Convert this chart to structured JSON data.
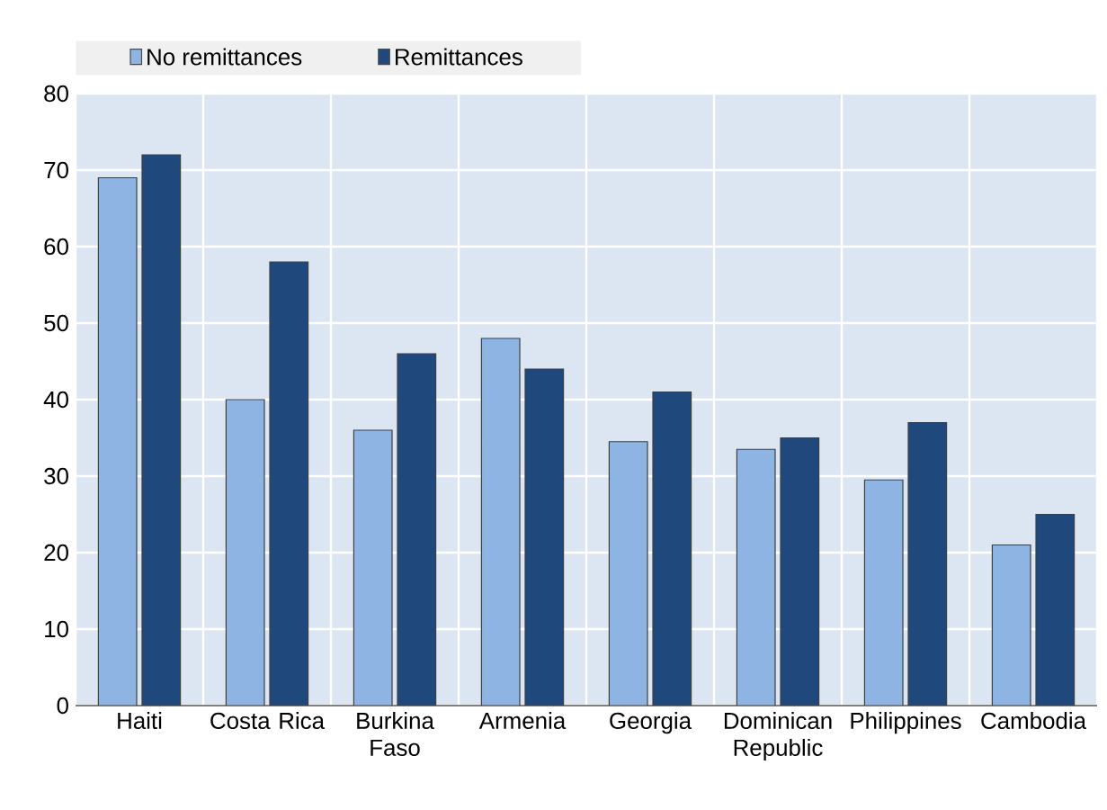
{
  "chart_data": {
    "type": "bar",
    "categories": [
      "Haiti",
      "Costa Rica",
      "Burkina Faso",
      "Armenia",
      "Georgia",
      "Dominican Republic",
      "Philippines",
      "Cambodia"
    ],
    "series": [
      {
        "name": "No remittances",
        "color": "#8db4e2",
        "values": [
          69,
          40,
          36,
          48,
          34.5,
          33.5,
          29.5,
          21
        ]
      },
      {
        "name": "Remittances",
        "color": "#1f497d",
        "values": [
          72,
          58,
          46,
          44,
          41,
          35,
          37,
          25
        ]
      }
    ],
    "ylim": [
      0,
      80
    ],
    "yticks": [
      0,
      10,
      20,
      30,
      40,
      50,
      60,
      70,
      80
    ],
    "grid": true,
    "legend": "top left"
  }
}
